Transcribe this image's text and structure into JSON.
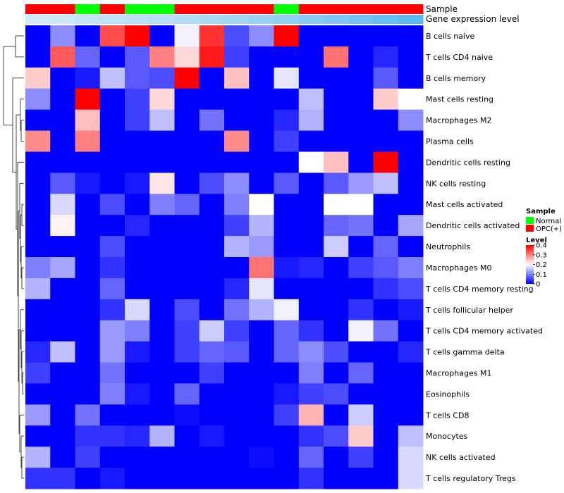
{
  "chart_data": {
    "type": "heatmap",
    "annotation_labels": [
      "Sample",
      "Gene expression level"
    ],
    "columns": {
      "sample": [
        "OPC(+)",
        "OPC(+)",
        "Normal",
        "OPC(+)",
        "Normal",
        "Normal",
        "OPC(+)",
        "OPC(+)",
        "OPC(+)",
        "OPC(+)",
        "Normal",
        "OPC(+)",
        "OPC(+)",
        "OPC(+)",
        "OPC(+)",
        "OPC(+)"
      ],
      "expression_level": [
        0.05,
        0.06,
        0.08,
        0.09,
        0.1,
        0.11,
        0.12,
        0.14,
        0.16,
        0.18,
        0.2,
        0.22,
        0.24,
        0.27,
        0.3,
        0.33
      ]
    },
    "rows": [
      "B cells naive",
      "T cells CD4 naive",
      "B cells memory",
      "Mast cells resting",
      "Macrophages M2",
      "Plasma cells",
      "Dendritic cells resting",
      "NK cells resting",
      "Mast cells activated",
      "Dendritic cells activated",
      "Neutrophils",
      "Macrophages M0",
      "T cells CD4 memory resting",
      "T cells follicular helper",
      "T cells CD4 memory activated",
      "T cells gamma delta",
      "Macrophages M1",
      "Eosinophils",
      "T cells CD8",
      "Monocytes",
      "NK cells activated",
      "T cells regulatory  Tregs"
    ],
    "values": [
      [
        0.0,
        0.11,
        0.0,
        0.34,
        0.4,
        0.0,
        0.19,
        0.36,
        0.06,
        0.11,
        0.4,
        0.0,
        0.0,
        0.0,
        0.0,
        0.0
      ],
      [
        0.0,
        0.33,
        0.08,
        0.0,
        0.07,
        0.3,
        0.23,
        0.38,
        0.05,
        0.0,
        0.0,
        0.0,
        0.31,
        0.0,
        0.03,
        0.0
      ],
      [
        0.24,
        0.0,
        0.02,
        0.15,
        0.07,
        0.06,
        0.4,
        0.0,
        0.25,
        0.0,
        0.18,
        0.0,
        0.0,
        0.0,
        0.07,
        0.0
      ],
      [
        0.11,
        0.0,
        0.4,
        0.0,
        0.05,
        0.23,
        0.0,
        0.0,
        0.0,
        0.0,
        0.0,
        0.15,
        0.0,
        0.0,
        0.24,
        0.2
      ],
      [
        0.0,
        0.0,
        0.25,
        0.0,
        0.05,
        0.15,
        0.0,
        0.09,
        0.0,
        0.0,
        0.03,
        0.14,
        0.0,
        0.0,
        0.0,
        0.11
      ],
      [
        0.29,
        0.0,
        0.3,
        0.0,
        0.0,
        0.0,
        0.0,
        0.0,
        0.29,
        0.0,
        0.05,
        0.0,
        0.0,
        0.0,
        0.0,
        0.0
      ],
      [
        0.0,
        0.0,
        0.0,
        0.0,
        0.0,
        0.0,
        0.0,
        0.0,
        0.0,
        0.0,
        0.0,
        0.2,
        0.25,
        0.0,
        0.4,
        0.0
      ],
      [
        0.0,
        0.07,
        0.02,
        0.0,
        0.02,
        0.22,
        0.0,
        0.06,
        0.11,
        0.0,
        0.07,
        0.0,
        0.07,
        0.12,
        0.15,
        0.0
      ],
      [
        0.0,
        0.17,
        0.0,
        0.06,
        0.0,
        0.1,
        0.08,
        0.0,
        0.1,
        0.2,
        0.0,
        0.0,
        0.2,
        0.2,
        0.0,
        0.0
      ],
      [
        0.0,
        0.21,
        0.0,
        0.0,
        0.03,
        0.0,
        0.0,
        0.0,
        0.05,
        0.14,
        0.0,
        0.0,
        0.08,
        0.09,
        0.0,
        0.13
      ],
      [
        0.0,
        0.0,
        0.0,
        0.06,
        0.0,
        0.0,
        0.0,
        0.0,
        0.14,
        0.12,
        0.0,
        0.0,
        0.16,
        0.0,
        0.08,
        0.0
      ],
      [
        0.1,
        0.13,
        0.0,
        0.04,
        0.0,
        0.0,
        0.0,
        0.0,
        0.0,
        0.31,
        0.02,
        0.03,
        0.0,
        0.05,
        0.07,
        0.1
      ],
      [
        0.14,
        0.0,
        0.0,
        0.08,
        0.0,
        0.0,
        0.0,
        0.0,
        0.03,
        0.18,
        0.0,
        0.0,
        0.0,
        0.0,
        0.04,
        0.06
      ],
      [
        0.0,
        0.0,
        0.0,
        0.04,
        0.17,
        0.0,
        0.06,
        0.0,
        0.09,
        0.14,
        0.19,
        0.0,
        0.0,
        0.04,
        0.0,
        0.02
      ],
      [
        0.0,
        0.0,
        0.0,
        0.12,
        0.1,
        0.0,
        0.05,
        0.16,
        0.05,
        0.0,
        0.08,
        0.04,
        0.0,
        0.19,
        0.09,
        0.0
      ],
      [
        0.03,
        0.15,
        0.0,
        0.12,
        0.02,
        0.0,
        0.05,
        0.08,
        0.07,
        0.0,
        0.08,
        0.11,
        0.06,
        0.0,
        0.0,
        0.03
      ],
      [
        0.05,
        0.0,
        0.0,
        0.09,
        0.0,
        0.0,
        0.0,
        0.05,
        0.0,
        0.0,
        0.0,
        0.1,
        0.0,
        0.08,
        0.0,
        0.0
      ],
      [
        0.0,
        0.0,
        0.0,
        0.1,
        0.02,
        0.0,
        0.08,
        0.0,
        0.0,
        0.0,
        0.02,
        0.05,
        0.06,
        0.0,
        0.0,
        0.0
      ],
      [
        0.12,
        0.0,
        0.09,
        0.0,
        0.0,
        0.0,
        0.01,
        0.0,
        0.0,
        0.0,
        0.05,
        0.26,
        0.0,
        0.16,
        0.0,
        0.0
      ],
      [
        0.0,
        0.0,
        0.04,
        0.04,
        0.03,
        0.14,
        0.0,
        0.02,
        0.0,
        0.0,
        0.0,
        0.04,
        0.06,
        0.24,
        0.0,
        0.15
      ],
      [
        0.14,
        0.0,
        0.05,
        0.0,
        0.0,
        0.0,
        0.0,
        0.0,
        0.0,
        0.01,
        0.0,
        0.08,
        0.0,
        0.05,
        0.0,
        0.17
      ],
      [
        0.04,
        0.04,
        0.0,
        0.02,
        0.0,
        0.0,
        0.0,
        0.0,
        0.0,
        0.0,
        0.0,
        0.04,
        0.0,
        0.0,
        0.0,
        0.17
      ]
    ],
    "color_scale": {
      "min": 0,
      "max": 0.4,
      "low": "#0000ff",
      "mid": "#ffffff",
      "high": "#ff0000"
    },
    "legend": {
      "sample_title": "Sample",
      "sample_entries": [
        {
          "label": "Normal",
          "color": "#00ff00"
        },
        {
          "label": "OPC(+)",
          "color": "#ff0000"
        }
      ],
      "level_title": "Level",
      "level_ticks": [
        "0.4",
        "0.3",
        "0.2",
        "0.1",
        "0"
      ],
      "placement": "right"
    },
    "expression_color": {
      "low": "#cfe9f6",
      "high": "#5ab9ef"
    },
    "dendrogram": "rows"
  }
}
